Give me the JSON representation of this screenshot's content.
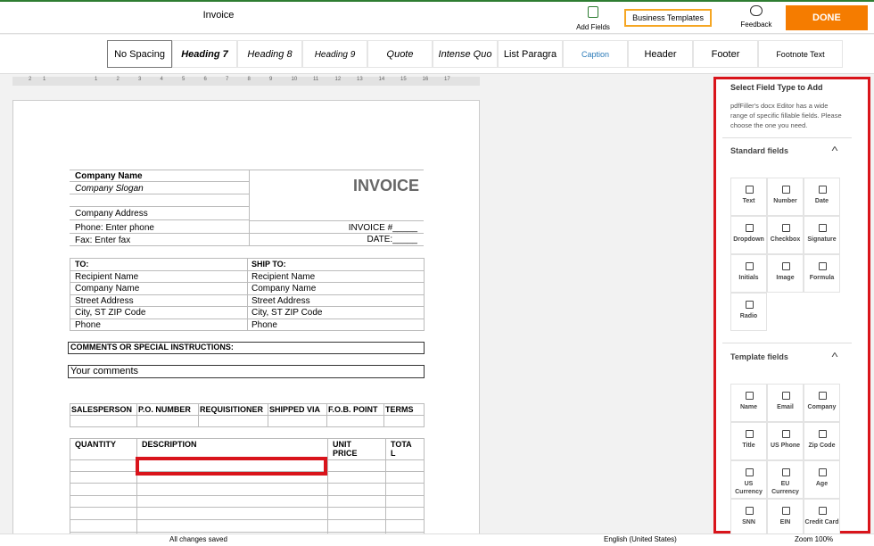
{
  "toolbar": {
    "doc_title": "Invoice",
    "add_fields": "Add Fields",
    "business_templates": "Business Templates",
    "feedback": "Feedback",
    "done": "DONE"
  },
  "styles": [
    "No Spacing",
    "Heading 7",
    "Heading 8",
    "Heading 9",
    "Quote",
    "Intense Quo",
    "List Paragra",
    "Caption",
    "Header",
    "Footer",
    "Footnote Text"
  ],
  "ruler": [
    "2",
    "1",
    "1",
    "2",
    "3",
    "4",
    "5",
    "6",
    "7",
    "8",
    "9",
    "10",
    "11",
    "12",
    "13",
    "14",
    "15",
    "16",
    "17"
  ],
  "document": {
    "company": [
      "Company Name",
      "Company Slogan",
      "",
      "Company Address",
      "Phone: Enter phone",
      "Fax: Enter fax"
    ],
    "invoice_title": "INVOICE",
    "invoice_number": "INVOICE #_____",
    "date": "DATE:_____",
    "address_rows": [
      [
        "TO:",
        "SHIP TO:"
      ],
      [
        "Recipient Name",
        "Recipient Name"
      ],
      [
        "Company Name",
        "Company Name"
      ],
      [
        "Street Address",
        "Street Address"
      ],
      [
        "City, ST ZIP Code",
        "City, ST ZIP Code"
      ],
      [
        "Phone",
        "Phone"
      ]
    ],
    "comments_header": "COMMENTS OR SPECIAL INSTRUCTIONS:",
    "comments": "Your comments",
    "order_headers": [
      "SALESPERSON",
      "P.O. NUMBER",
      "REQUISITIONER",
      "SHIPPED VIA",
      "F.O.B. POINT",
      "TERMS"
    ],
    "item_headers": [
      "QUANTITY",
      "DESCRIPTION",
      "UNIT PRICE",
      "TOTAL"
    ]
  },
  "status": {
    "saved": "All changes saved",
    "language": "English (United States)",
    "zoom": "Zoom 100%"
  },
  "panel": {
    "title": "Select Field Type to Add",
    "description": "pdfFiller's docx Editor has a wide range of specific fillable fields. Please choose the one you need.",
    "standard_title": "Standard fields",
    "standard": [
      "Text",
      "Number",
      "Date",
      "Dropdown",
      "Checkbox",
      "Signature",
      "Initials",
      "Image",
      "Formula",
      "Radio"
    ],
    "template_title": "Template fields",
    "template": [
      "Name",
      "Email",
      "Company",
      "Title",
      "US Phone",
      "Zip Code",
      "US Currency",
      "EU Currency",
      "Age",
      "SNN",
      "EIN",
      "Credit Card"
    ]
  }
}
